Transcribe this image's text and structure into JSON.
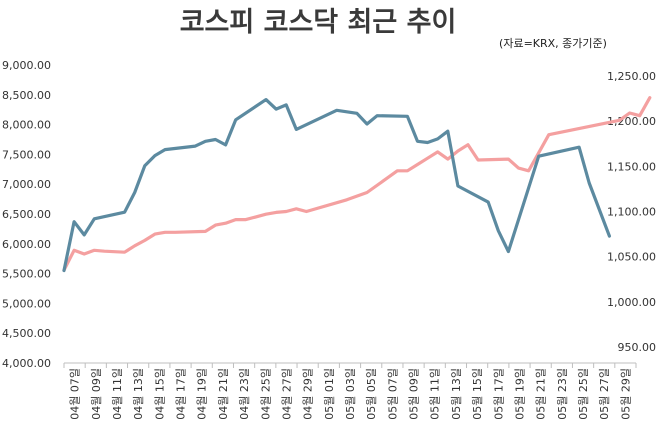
{
  "chart_data": {
    "type": "line",
    "title": "코스피 코스닥 최근 추이",
    "source": "(자료=KRX, 종가기준)",
    "categories": [
      "04월 07일",
      "04월 09일",
      "04월 11일",
      "04월 13일",
      "04월 15일",
      "04월 17일",
      "04월 19일",
      "04월 21일",
      "04월 23일",
      "04월 25일",
      "04월 27일",
      "04월 29일",
      "05월 01일",
      "05월 03일",
      "05월 05일",
      "05월 07일",
      "05월 09일",
      "05월 11일",
      "05월 13일",
      "05월 15일",
      "05월 17일",
      "05월 19일",
      "05월 21일",
      "05월 23일",
      "05월 25일",
      "05월 27일",
      "05월 29일"
    ],
    "y_left": {
      "ticks": [
        "9,000.00",
        "8,500.00",
        "8,000.00",
        "7,500.00",
        "7,000.00",
        "6,500.00",
        "6,000.00",
        "5,500.00",
        "5,000.00",
        "4,500.00",
        "4,000.00"
      ],
      "range": [
        4000,
        9000
      ]
    },
    "y_right": {
      "ticks": [
        "1,250.00",
        "1,200.00",
        "1,150.00",
        "1,100.00",
        "1,050.00",
        "1,000.00",
        "950.00"
      ],
      "range": [
        950,
        1250
      ]
    },
    "series": [
      {
        "axis": "right",
        "color": "#f4a0a0",
        "points": [
          [
            0,
            1035
          ],
          [
            1,
            1057
          ],
          [
            2,
            1053
          ],
          [
            3,
            1057
          ],
          [
            4,
            1056
          ],
          [
            6,
            1055
          ],
          [
            7,
            1062
          ],
          [
            8,
            1068
          ],
          [
            9,
            1075
          ],
          [
            10,
            1077
          ],
          [
            11,
            1077
          ],
          [
            14,
            1078
          ],
          [
            15,
            1085
          ],
          [
            16,
            1087
          ],
          [
            17,
            1091
          ],
          [
            18,
            1091
          ],
          [
            19,
            1094
          ],
          [
            20,
            1097
          ],
          [
            21,
            1099
          ],
          [
            22,
            1100
          ],
          [
            23,
            1103
          ],
          [
            24,
            1100
          ],
          [
            28,
            1113
          ],
          [
            30,
            1121
          ],
          [
            32,
            1137
          ],
          [
            33,
            1145
          ],
          [
            34,
            1145
          ],
          [
            35,
            1152
          ],
          [
            36,
            1159
          ],
          [
            37,
            1166
          ],
          [
            38,
            1158
          ],
          [
            39,
            1167
          ],
          [
            40,
            1174
          ],
          [
            41,
            1157
          ],
          [
            44,
            1158
          ],
          [
            45,
            1148
          ],
          [
            46,
            1145
          ],
          [
            47,
            1165
          ],
          [
            48,
            1185
          ],
          [
            55,
            1201
          ],
          [
            56,
            1209
          ],
          [
            57,
            1206
          ],
          [
            58,
            1226
          ]
        ]
      },
      {
        "axis": "left",
        "color": "#5c8aa0",
        "points": [
          [
            0,
            5550
          ],
          [
            1,
            6370
          ],
          [
            2,
            6150
          ],
          [
            3,
            6420
          ],
          [
            6,
            6530
          ],
          [
            7,
            6860
          ],
          [
            8,
            7310
          ],
          [
            9,
            7480
          ],
          [
            10,
            7580
          ],
          [
            13,
            7640
          ],
          [
            14,
            7720
          ],
          [
            15,
            7750
          ],
          [
            16,
            7660
          ],
          [
            17,
            8080
          ],
          [
            20,
            8420
          ],
          [
            21,
            8260
          ],
          [
            22,
            8330
          ],
          [
            23,
            7920
          ],
          [
            27,
            8240
          ],
          [
            29,
            8190
          ],
          [
            30,
            8010
          ],
          [
            31,
            8150
          ],
          [
            34,
            8140
          ],
          [
            35,
            7720
          ],
          [
            36,
            7700
          ],
          [
            37,
            7760
          ],
          [
            38,
            7890
          ],
          [
            39,
            6970
          ],
          [
            42,
            6700
          ],
          [
            43,
            6220
          ],
          [
            44,
            5870
          ],
          [
            47,
            7470
          ],
          [
            51,
            7620
          ],
          [
            52,
            7020
          ],
          [
            54,
            6130
          ]
        ]
      }
    ]
  }
}
